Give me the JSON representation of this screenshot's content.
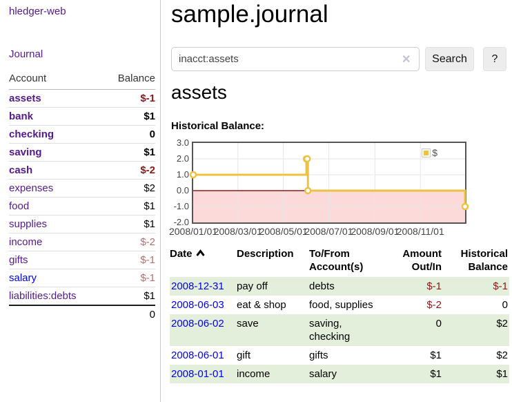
{
  "app": {
    "brand": "hledger-web",
    "nav_journal": "Journal"
  },
  "sidebar": {
    "headers": {
      "account": "Account",
      "balance": "Balance"
    },
    "accounts": [
      {
        "name": "assets",
        "balance": "$-1"
      },
      {
        "name": "bank",
        "balance": "$1"
      },
      {
        "name": "checking",
        "balance": "0"
      },
      {
        "name": "saving",
        "balance": "$1"
      },
      {
        "name": "cash",
        "balance": "$-2"
      },
      {
        "name": "expenses",
        "balance": "$2"
      },
      {
        "name": "food",
        "balance": "$1"
      },
      {
        "name": "supplies",
        "balance": "$1"
      },
      {
        "name": "income",
        "balance": "$-2"
      },
      {
        "name": "gifts",
        "balance": "$-1"
      },
      {
        "name": "salary",
        "balance": "$-1"
      },
      {
        "name": "liabilities:debts",
        "balance": "$1"
      }
    ],
    "total": "0"
  },
  "header": {
    "title": "sample.journal"
  },
  "search": {
    "value": "inacct:assets",
    "clear_icon": "✕",
    "button_label": "Search",
    "help_label": "?"
  },
  "account_page": {
    "title": "assets",
    "chart_heading": "Historical Balance:"
  },
  "chart_data": {
    "type": "line",
    "title": "Historical Balance",
    "legend": "$",
    "line_color": "#edc240",
    "steps": true,
    "x": [
      "2008-01-01",
      "2008-06-01",
      "2008-06-02",
      "2008-06-03",
      "2008-12-31"
    ],
    "y": [
      1,
      2,
      2,
      0,
      -1
    ],
    "xrange": [
      "2008-01-01",
      "2008-12-31"
    ],
    "ylim": [
      -2,
      3
    ],
    "y_ticks": [
      "3.0",
      "2.0",
      "1.0",
      "0.0",
      "-1.0",
      "-2.0"
    ],
    "x_ticks": [
      "2008/01/01",
      "2008/03/01",
      "2008/05/01",
      "2008/07/01",
      "2008/09/01",
      "2008/11/01"
    ],
    "grid": true,
    "legend_position": "top-right",
    "negative_fill": "#fcdada",
    "zero_line_color": "#8b1a1a"
  },
  "register": {
    "headers": {
      "date": "Date",
      "description": "Description",
      "accounts": "To/From\nAccount(s)",
      "amount": "Amount\nOut/In",
      "balance": "Historical\nBalance"
    },
    "rows": [
      {
        "date": "2008-12-31",
        "description": "pay off",
        "accounts": "debts",
        "amount": "$-1",
        "balance": "$-1"
      },
      {
        "date": "2008-06-03",
        "description": "eat & shop",
        "accounts": "food, supplies",
        "amount": "$-2",
        "balance": "0"
      },
      {
        "date": "2008-06-02",
        "description": "save",
        "accounts": "saving,\nchecking",
        "amount": "0",
        "balance": "$2"
      },
      {
        "date": "2008-06-01",
        "description": "gift",
        "accounts": "gifts",
        "amount": "$1",
        "balance": "$2"
      },
      {
        "date": "2008-01-01",
        "description": "income",
        "accounts": "salary",
        "amount": "$1",
        "balance": "$1"
      }
    ]
  }
}
